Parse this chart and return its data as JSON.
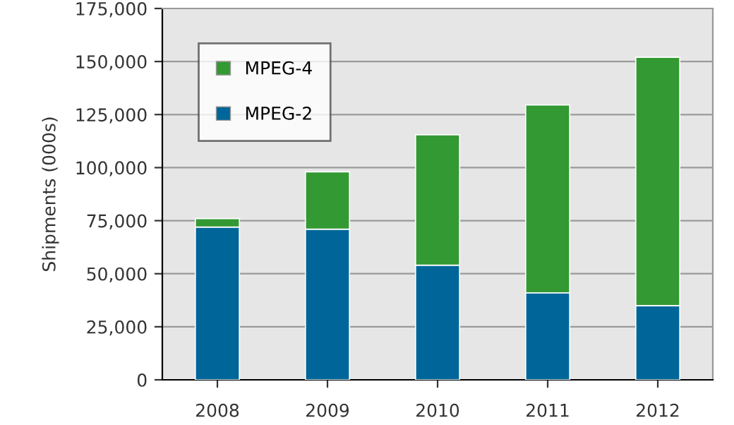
{
  "chart_data": {
    "type": "bar",
    "stacked": true,
    "ylabel": "Shipments (000s)",
    "categories": [
      "2008",
      "2009",
      "2010",
      "2011",
      "2012"
    ],
    "series": [
      {
        "name": "MPEG-2",
        "color": "#006699",
        "values": [
          72000,
          71000,
          54000,
          41000,
          35000
        ]
      },
      {
        "name": "MPEG-4",
        "color": "#339933",
        "values": [
          4000,
          27000,
          61500,
          88500,
          117000
        ]
      }
    ],
    "ylim": [
      0,
      175000
    ],
    "yticks": [
      {
        "value": 0,
        "label": "0"
      },
      {
        "value": 25000,
        "label": "25,000"
      },
      {
        "value": 50000,
        "label": "50,000"
      },
      {
        "value": 75000,
        "label": "75,000"
      },
      {
        "value": 100000,
        "label": "100,000"
      },
      {
        "value": 125000,
        "label": "125,000"
      },
      {
        "value": 150000,
        "label": "150,000"
      },
      {
        "value": 175000,
        "label": "175,000"
      }
    ],
    "grid": "y",
    "legend": "top left"
  }
}
